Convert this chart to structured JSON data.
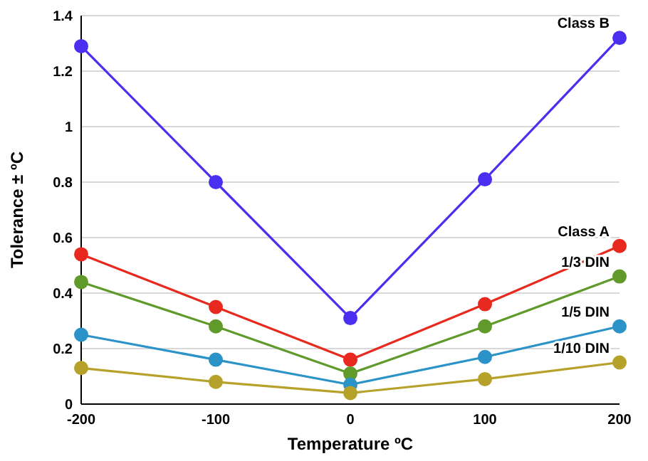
{
  "chart_data": {
    "type": "line",
    "xlabel": "Temperature ºC",
    "ylabel": "Tolerance ± ºC",
    "x": [
      -200,
      -100,
      0,
      100,
      200
    ],
    "xlim": [
      -200,
      200
    ],
    "xticks": [
      -200,
      -100,
      0,
      100,
      200
    ],
    "ylim": [
      0,
      1.4
    ],
    "yticks": [
      0,
      0.2,
      0.4,
      0.6,
      0.8,
      1,
      1.2,
      1.4
    ],
    "grid": "y",
    "marker": "circle",
    "series": [
      {
        "name": "Class B",
        "color": "#4a2ff0",
        "values": [
          1.29,
          0.8,
          0.31,
          0.81,
          1.32
        ]
      },
      {
        "name": "Class A",
        "color": "#e8291f",
        "values": [
          0.54,
          0.35,
          0.16,
          0.36,
          0.57
        ]
      },
      {
        "name": "1/3 DIN",
        "color": "#5f9a2a",
        "values": [
          0.44,
          0.28,
          0.11,
          0.28,
          0.46
        ]
      },
      {
        "name": "1/5 DIN",
        "color": "#2b93c8",
        "values": [
          0.25,
          0.16,
          0.07,
          0.17,
          0.28
        ]
      },
      {
        "name": "1/10 DIN",
        "color": "#b6a22b",
        "values": [
          0.13,
          0.08,
          0.04,
          0.09,
          0.15
        ]
      }
    ]
  }
}
